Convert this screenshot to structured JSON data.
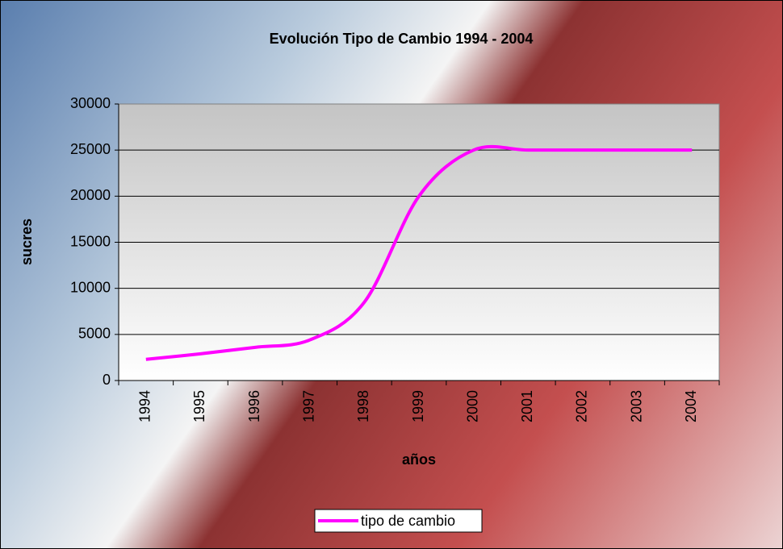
{
  "chart_data": {
    "type": "line",
    "title": "Evolución Tipo de Cambio 1994 - 2004",
    "x_label": "años",
    "y_label": "sucres",
    "categories": [
      "1994",
      "1995",
      "1996",
      "1997",
      "1998",
      "1999",
      "2000",
      "2001",
      "2002",
      "2003",
      "2004"
    ],
    "series": [
      {
        "name": "tipo de cambio",
        "color": "#ff00ff",
        "values": [
          2300,
          2900,
          3600,
          4400,
          8500,
          20000,
          25000,
          25000,
          25000,
          25000,
          25000
        ]
      }
    ],
    "ylim": [
      0,
      30000
    ],
    "yticks": [
      0,
      5000,
      10000,
      15000,
      20000,
      25000,
      30000
    ],
    "grid": true,
    "legend": "bottom"
  }
}
